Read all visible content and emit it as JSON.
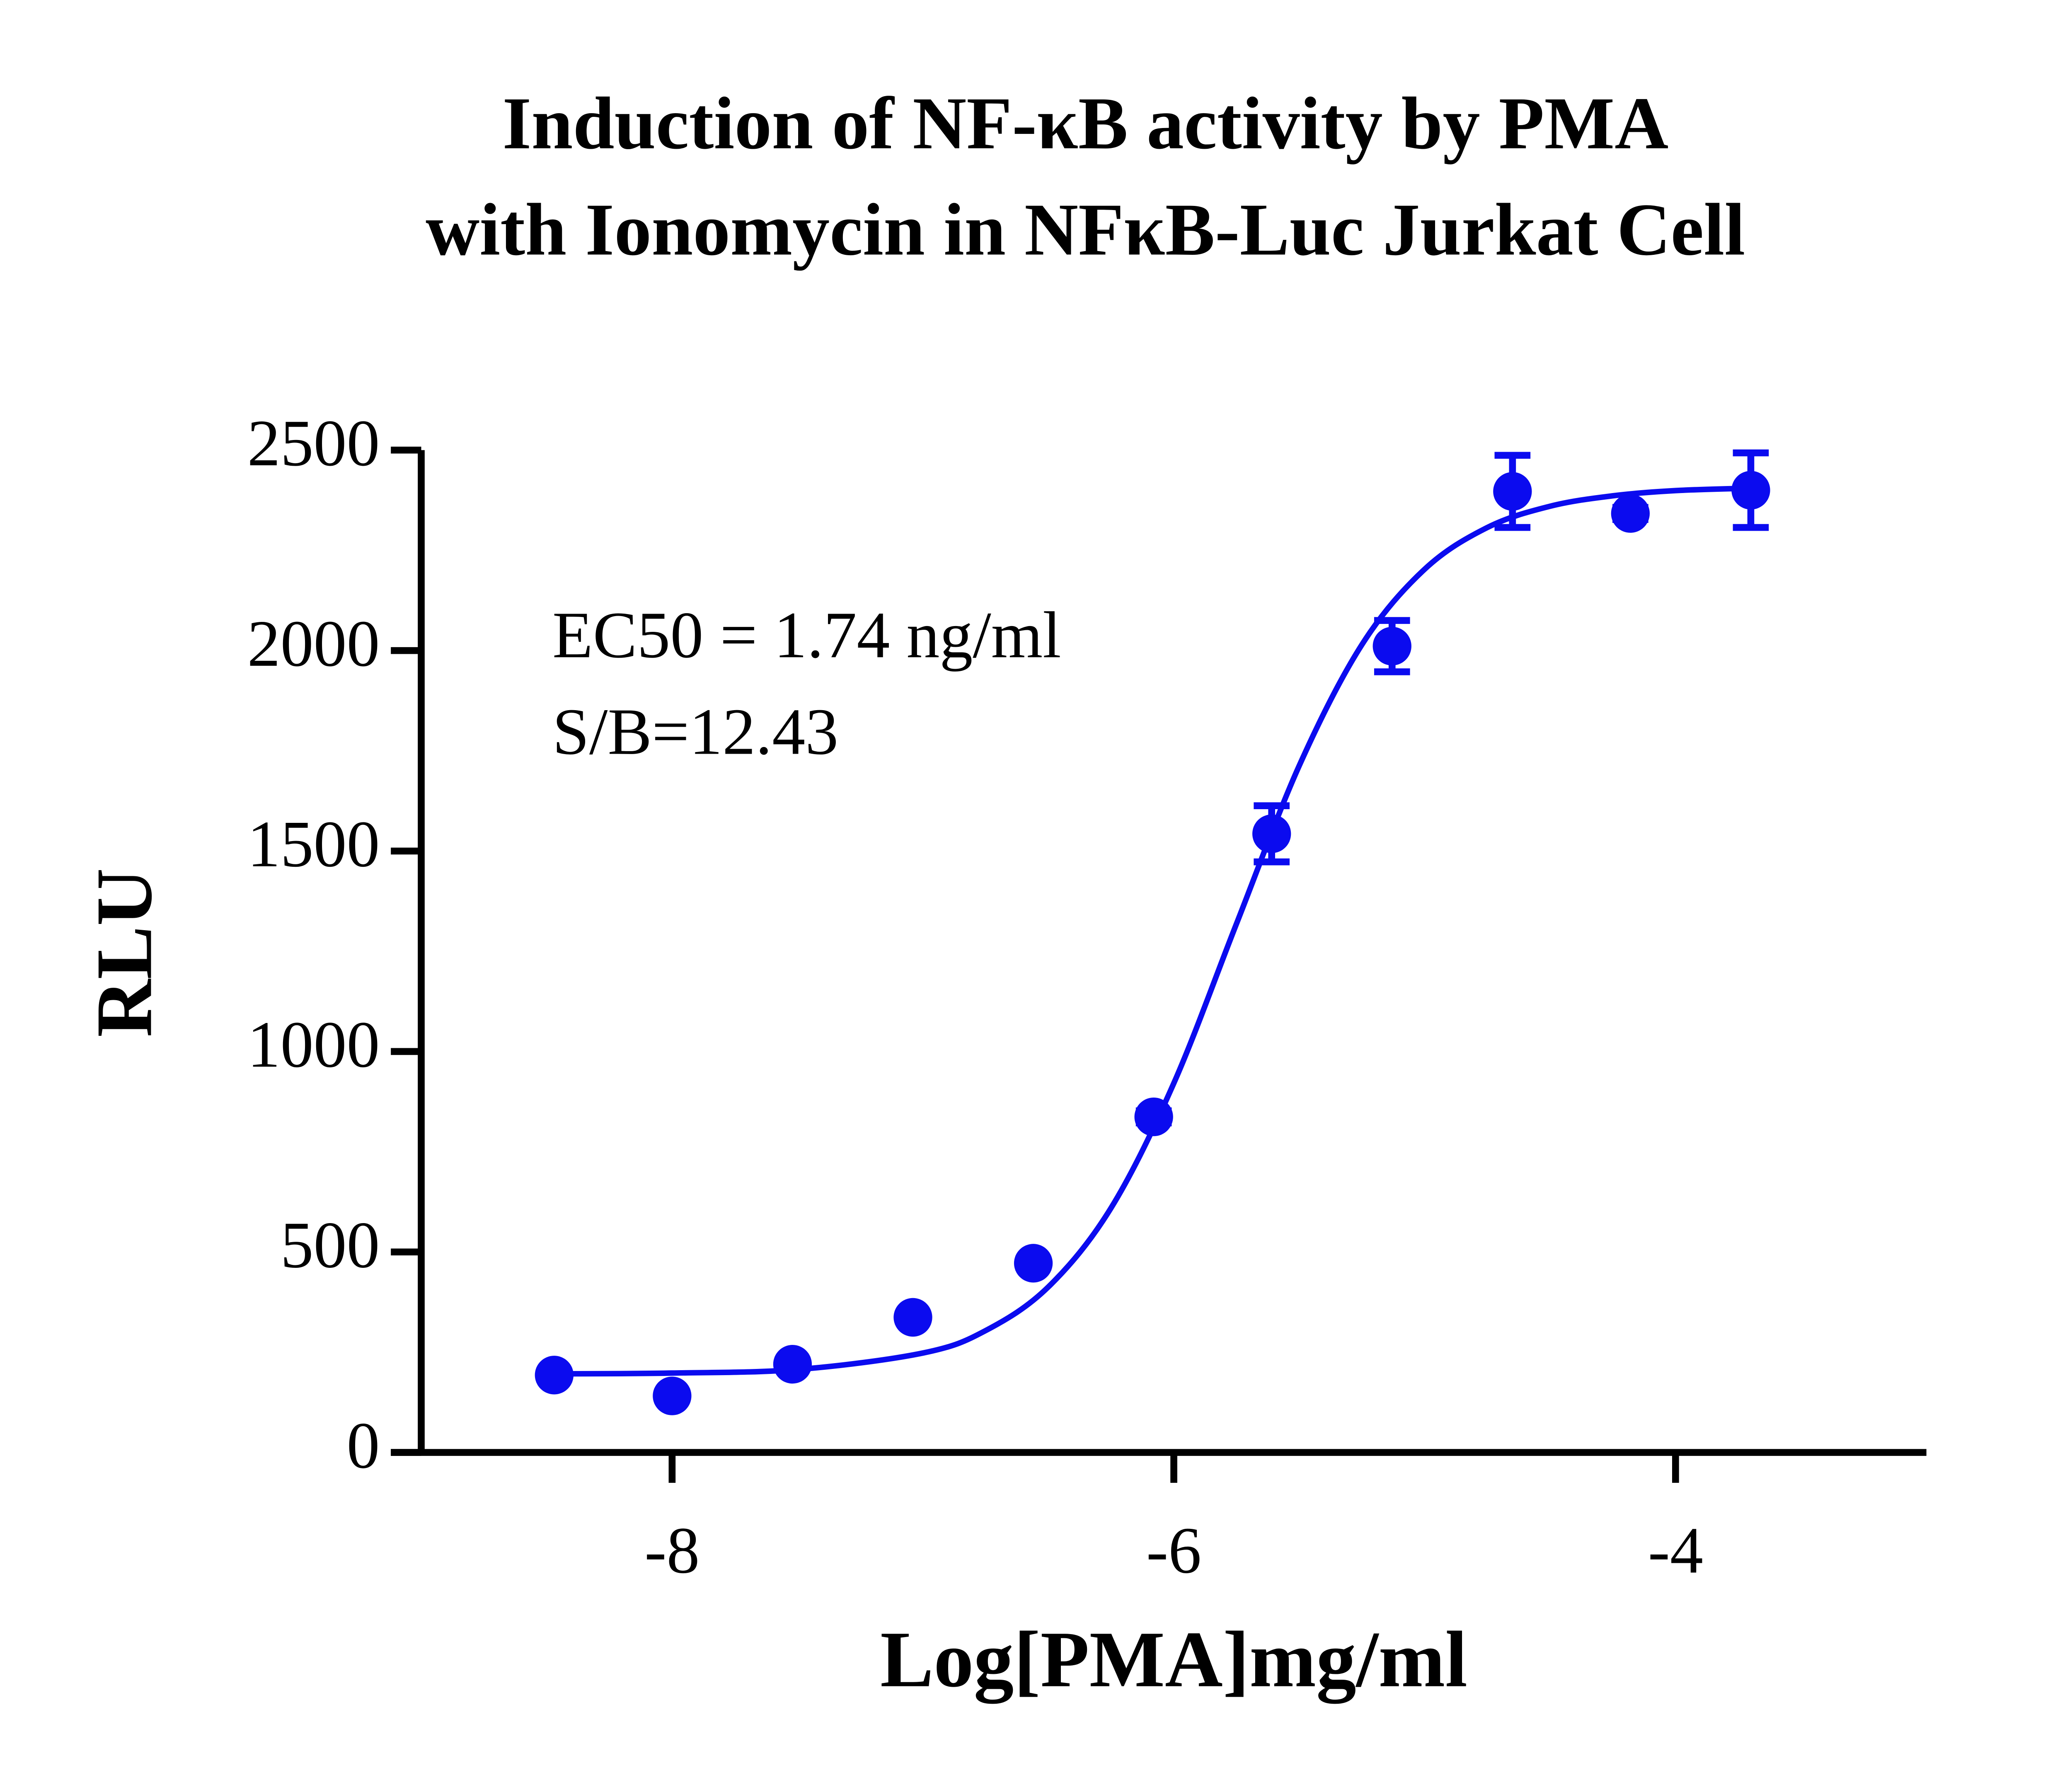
{
  "chart_data": {
    "type": "scatter",
    "title": [
      "Induction of NF-κB activity by PMA",
      "with Ionomycin in NFκB-Luc Jurkat Cell"
    ],
    "x_label": "Log[PMA]mg/ml",
    "y_label": "RLU",
    "annotations": [
      "EC50 = 1.74 ng/ml",
      "S/B=12.43"
    ],
    "color": "#0b0bef",
    "x": [
      -8.47,
      -8.0,
      -7.52,
      -7.04,
      -6.56,
      -6.08,
      -5.61,
      -5.13,
      -4.65,
      -4.18,
      -3.7
    ],
    "values": [
      193,
      141,
      220,
      337,
      472,
      837,
      1543,
      2011,
      2397,
      2342,
      2400
    ],
    "errors": [
      10,
      10,
      10,
      10,
      10,
      15,
      70,
      64,
      90,
      15,
      93
    ],
    "curve": {
      "x": [
        -8.47,
        -8,
        -7.5,
        -7,
        -6.75,
        -6.5,
        -6.25,
        -6,
        -5.75,
        -5.5,
        -5.25,
        -5,
        -4.75,
        -4.5,
        -4.25,
        -4,
        -3.7
      ],
      "y": [
        196,
        198,
        207,
        248,
        304,
        413,
        610,
        921,
        1319,
        1713,
        2015,
        2203,
        2307,
        2360,
        2386,
        2399,
        2405
      ]
    },
    "xlim": [
      -9,
      -3
    ],
    "ylim": [
      0,
      2500
    ],
    "xticks": [
      -8,
      -6,
      -4
    ],
    "yticks": [
      0,
      500,
      1000,
      1500,
      2000,
      2500
    ]
  }
}
